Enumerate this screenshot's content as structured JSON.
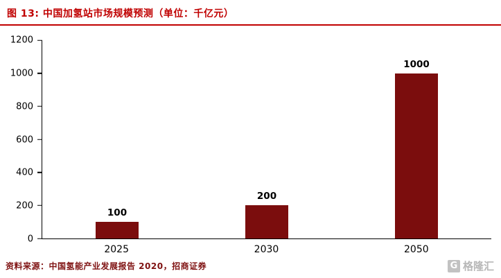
{
  "header": {
    "title": "图 13:  中国加氢站市场规模预测（单位：千亿元）"
  },
  "chart_data": {
    "type": "bar",
    "title": "中国加氢站市场规模预测",
    "unit": "千亿元",
    "categories": [
      "2025",
      "2030",
      "2050"
    ],
    "values": [
      100,
      200,
      1000
    ],
    "xlabel": "",
    "ylabel": "",
    "ylim": [
      0,
      1200
    ],
    "yticks": [
      0,
      200,
      400,
      600,
      800,
      1000,
      1200
    ],
    "grid": false,
    "legend": "none"
  },
  "colors": {
    "accent": "#c00000",
    "bar": "#7b0d0d",
    "footer_text": "#7f1212",
    "watermark": "#b7b7b7"
  },
  "footer": {
    "source": "资料来源：中国氢能产业发展报告 2020，招商证券"
  },
  "watermark": {
    "letter": "G",
    "text": "格隆汇"
  }
}
